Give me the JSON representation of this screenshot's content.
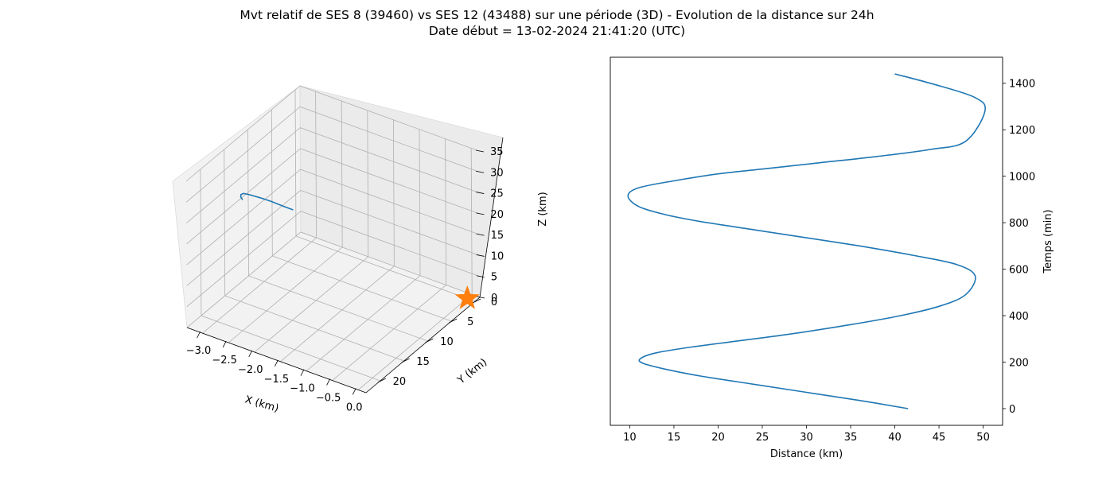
{
  "title_line1": "Mvt relatif de SES 8 (39460) vs SES 12 (43488) sur une période (3D) - Evolution de la distance sur 24h",
  "title_line2": "Date début = 13-02-2024 21:41:20 (UTC)",
  "chart_data": [
    {
      "type": "line3d",
      "xlabel": "X (km)",
      "ylabel": "Y (km)",
      "zlabel": "Z (km)",
      "xlim": [
        -3.3,
        0.15
      ],
      "ylim": [
        -1,
        23
      ],
      "zlim": [
        0,
        35
      ],
      "xticks": [
        -3.0,
        -2.5,
        -2.0,
        -1.5,
        -1.0,
        -0.5,
        0.0
      ],
      "xtick_labels": [
        "−3.0",
        "−2.5",
        "−2.0",
        "−1.5",
        "−1.0",
        "−0.5",
        "0.0"
      ],
      "yticks": [
        0,
        5,
        10,
        15,
        20
      ],
      "ytick_labels": [
        "0",
        "5",
        "10",
        "15",
        "20"
      ],
      "zticks": [
        0,
        5,
        10,
        15,
        20,
        25,
        30,
        35
      ],
      "ztick_labels": [
        "0",
        "5",
        "10",
        "15",
        "20",
        "25",
        "30",
        "35"
      ],
      "grid": true,
      "colors": {
        "trajectory": "#1f77b4",
        "marker": "#ff7f0e",
        "pane": "#f2f2f2",
        "grid": "#b0b0b0"
      },
      "series": [
        {
          "kind": "trajectory",
          "x": [
            -2.58,
            -2.57,
            -2.52,
            -2.42,
            -2.25,
            -2.02,
            -1.78,
            -1.52,
            -1.33
          ],
          "y": [
            19.0,
            19.5,
            20.0,
            20.5,
            21.0,
            21.4,
            21.7,
            21.9,
            22.0
          ],
          "z": [
            30.0,
            31.2,
            32.5,
            33.7,
            34.6,
            35.3,
            35.8,
            36.0,
            36.1
          ]
        },
        {
          "kind": "marker",
          "marker": "star",
          "x": [
            0.0
          ],
          "y": [
            0.0
          ],
          "z": [
            0.0
          ]
        }
      ]
    },
    {
      "type": "line",
      "xlabel": "Distance (km)",
      "ylabel": "Temps (min)",
      "xlim": [
        7.8,
        52.2
      ],
      "ylim": [
        -72,
        1512
      ],
      "xticks": [
        10,
        15,
        20,
        25,
        30,
        35,
        40,
        45,
        50
      ],
      "xtick_labels": [
        "10",
        "15",
        "20",
        "25",
        "30",
        "35",
        "40",
        "45",
        "50"
      ],
      "yticks": [
        0,
        200,
        400,
        600,
        800,
        1000,
        1200,
        1400
      ],
      "ytick_labels": [
        "0",
        "200",
        "400",
        "600",
        "800",
        "1000",
        "1200",
        "1400"
      ],
      "yaxis_side": "right",
      "grid": false,
      "colors": {
        "line": "#1f77b4"
      },
      "series": [
        {
          "x": [
            41.5,
            36,
            30,
            24,
            18,
            14,
            11.5,
            11.2,
            13,
            17,
            22,
            28,
            34,
            40,
            45,
            48,
            49.1,
            47,
            42,
            36,
            30,
            24,
            18,
            14,
            11,
            9.8,
            11,
            15,
            20,
            26,
            32,
            38,
            44,
            48,
            50.2,
            49,
            44,
            40
          ],
          "y": [
            0,
            35,
            70,
            105,
            140,
            170,
            195,
            215,
            240,
            265,
            290,
            320,
            355,
            395,
            440,
            490,
            570,
            620,
            660,
            700,
            735,
            770,
            805,
            835,
            870,
            915,
            950,
            980,
            1010,
            1035,
            1060,
            1085,
            1115,
            1150,
            1280,
            1340,
            1400,
            1440
          ]
        }
      ]
    }
  ]
}
